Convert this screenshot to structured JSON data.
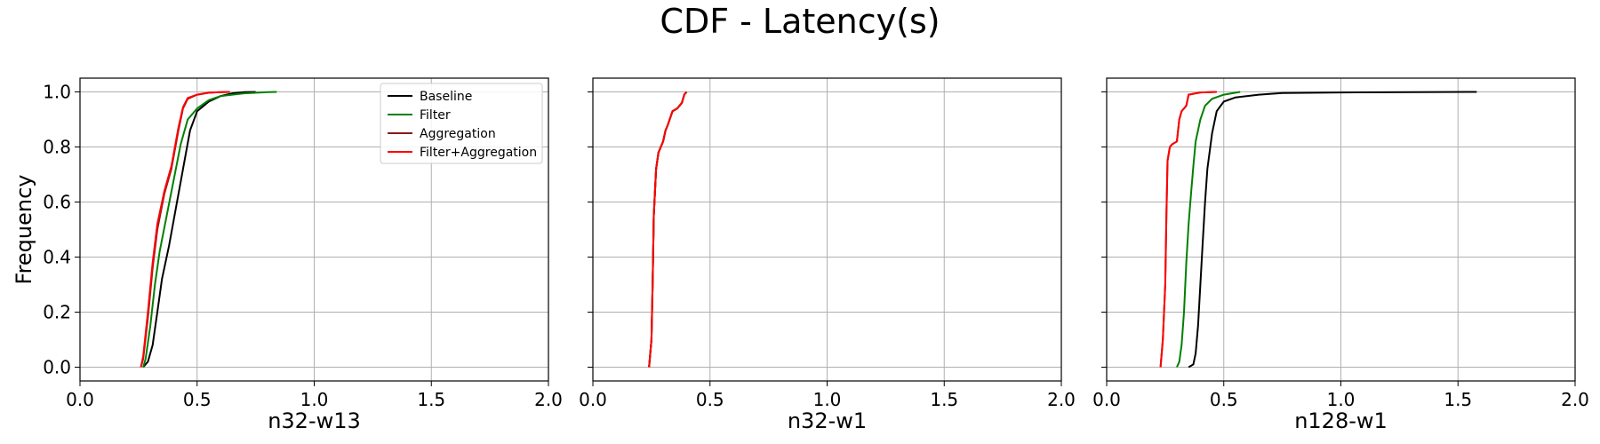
{
  "title": "CDF - Latency(s)",
  "chart_data": [
    {
      "type": "line",
      "xlabel": "n32-w13",
      "ylabel": "Frequency",
      "xlim": [
        0,
        2.0
      ],
      "ylim": [
        -0.05,
        1.05
      ],
      "xticks": [
        "0.0",
        "0.5",
        "1.0",
        "1.5",
        "2.0"
      ],
      "yticks": [
        "0.0",
        "0.2",
        "0.4",
        "0.6",
        "0.8",
        "1.0"
      ],
      "grid": true,
      "legend": "top-right",
      "series": [
        {
          "name": "Baseline",
          "color": "#000000",
          "x": [
            0.27,
            0.29,
            0.31,
            0.33,
            0.35,
            0.38,
            0.41,
            0.44,
            0.47,
            0.5,
            0.55,
            0.6,
            0.65,
            0.7,
            0.75
          ],
          "y": [
            0.0,
            0.02,
            0.08,
            0.2,
            0.32,
            0.44,
            0.58,
            0.72,
            0.86,
            0.93,
            0.965,
            0.985,
            0.995,
            0.999,
            1.0
          ]
        },
        {
          "name": "Filter",
          "color": "#008000",
          "x": [
            0.27,
            0.28,
            0.3,
            0.32,
            0.34,
            0.37,
            0.4,
            0.43,
            0.46,
            0.5,
            0.55,
            0.6,
            0.7,
            0.8,
            0.84
          ],
          "y": [
            0.0,
            0.03,
            0.15,
            0.3,
            0.42,
            0.55,
            0.68,
            0.81,
            0.9,
            0.94,
            0.97,
            0.985,
            0.995,
            0.999,
            1.0
          ]
        },
        {
          "name": "Aggregation",
          "color": "#8b1a1a",
          "x": [
            0.26,
            0.27,
            0.29,
            0.31,
            0.33,
            0.36,
            0.39,
            0.42,
            0.44,
            0.46,
            0.5,
            0.55,
            0.6,
            0.64
          ],
          "y": [
            0.0,
            0.03,
            0.18,
            0.36,
            0.5,
            0.63,
            0.72,
            0.86,
            0.94,
            0.975,
            0.99,
            0.997,
            0.999,
            1.0
          ]
        },
        {
          "name": "Filter+Aggregation",
          "color": "#ff0000",
          "x": [
            0.26,
            0.27,
            0.29,
            0.31,
            0.33,
            0.36,
            0.39,
            0.42,
            0.44,
            0.46,
            0.5,
            0.55,
            0.6,
            0.64
          ],
          "y": [
            0.0,
            0.04,
            0.2,
            0.38,
            0.52,
            0.64,
            0.73,
            0.87,
            0.945,
            0.978,
            0.99,
            0.997,
            0.999,
            1.0
          ]
        }
      ]
    },
    {
      "type": "line",
      "xlabel": "n32-w1",
      "ylabel": "",
      "xlim": [
        0,
        2.0
      ],
      "ylim": [
        -0.05,
        1.05
      ],
      "xticks": [
        "0.0",
        "0.5",
        "1.0",
        "1.5",
        "2.0"
      ],
      "yticks": [
        "",
        "",
        "",
        "",
        "",
        ""
      ],
      "grid": true,
      "legend": "none",
      "series": [
        {
          "name": "Baseline",
          "color": "#000000",
          "x": [
            0.24,
            0.25,
            0.255,
            0.26,
            0.27,
            0.28,
            0.29,
            0.3,
            0.31,
            0.32,
            0.34,
            0.36,
            0.38,
            0.39,
            0.4
          ],
          "y": [
            0.0,
            0.1,
            0.3,
            0.55,
            0.72,
            0.78,
            0.8,
            0.82,
            0.86,
            0.88,
            0.93,
            0.94,
            0.96,
            0.99,
            1.0
          ]
        },
        {
          "name": "Filter",
          "color": "#008000",
          "x": [
            0.24,
            0.25,
            0.255,
            0.26,
            0.27,
            0.28,
            0.29,
            0.3,
            0.31,
            0.32,
            0.34,
            0.36,
            0.38,
            0.39,
            0.4
          ],
          "y": [
            0.0,
            0.1,
            0.3,
            0.55,
            0.72,
            0.78,
            0.8,
            0.82,
            0.86,
            0.88,
            0.93,
            0.94,
            0.96,
            0.99,
            1.0
          ]
        },
        {
          "name": "Aggregation",
          "color": "#8b1a1a",
          "x": [
            0.24,
            0.25,
            0.255,
            0.26,
            0.27,
            0.28,
            0.29,
            0.3,
            0.31,
            0.32,
            0.34,
            0.36,
            0.38,
            0.39,
            0.4
          ],
          "y": [
            0.0,
            0.1,
            0.3,
            0.55,
            0.72,
            0.78,
            0.8,
            0.82,
            0.86,
            0.88,
            0.93,
            0.94,
            0.96,
            0.99,
            1.0
          ]
        },
        {
          "name": "Filter+Aggregation",
          "color": "#ff0000",
          "x": [
            0.24,
            0.25,
            0.255,
            0.26,
            0.27,
            0.28,
            0.29,
            0.3,
            0.31,
            0.32,
            0.34,
            0.36,
            0.38,
            0.39,
            0.4
          ],
          "y": [
            0.0,
            0.1,
            0.3,
            0.55,
            0.72,
            0.78,
            0.8,
            0.82,
            0.86,
            0.88,
            0.93,
            0.94,
            0.96,
            0.99,
            1.0
          ]
        }
      ]
    },
    {
      "type": "line",
      "xlabel": "n128-w1",
      "ylabel": "",
      "xlim": [
        0,
        2.0
      ],
      "ylim": [
        -0.05,
        1.05
      ],
      "xticks": [
        "0.0",
        "0.5",
        "1.0",
        "1.5",
        "2.0"
      ],
      "yticks": [
        "",
        "",
        "",
        "",
        "",
        ""
      ],
      "grid": true,
      "legend": "none",
      "series": [
        {
          "name": "Baseline",
          "color": "#000000",
          "x": [
            0.35,
            0.37,
            0.38,
            0.39,
            0.4,
            0.41,
            0.42,
            0.43,
            0.45,
            0.47,
            0.5,
            0.55,
            0.65,
            0.75,
            1.0,
            1.3,
            1.58
          ],
          "y": [
            0.0,
            0.01,
            0.05,
            0.15,
            0.3,
            0.45,
            0.6,
            0.72,
            0.85,
            0.93,
            0.965,
            0.98,
            0.99,
            0.996,
            0.998,
            0.999,
            1.0
          ]
        },
        {
          "name": "Filter",
          "color": "#008000",
          "x": [
            0.3,
            0.31,
            0.32,
            0.33,
            0.34,
            0.35,
            0.36,
            0.37,
            0.38,
            0.4,
            0.42,
            0.45,
            0.5,
            0.57
          ],
          "y": [
            0.0,
            0.02,
            0.08,
            0.2,
            0.38,
            0.52,
            0.63,
            0.73,
            0.82,
            0.9,
            0.95,
            0.975,
            0.99,
            1.0
          ]
        },
        {
          "name": "Aggregation",
          "color": "#8b1a1a",
          "x": [
            0.23,
            0.24,
            0.25,
            0.255,
            0.26,
            0.27,
            0.28,
            0.3,
            0.31,
            0.32,
            0.33,
            0.34,
            0.35,
            0.4,
            0.47
          ],
          "y": [
            0.0,
            0.1,
            0.3,
            0.55,
            0.75,
            0.8,
            0.81,
            0.82,
            0.9,
            0.93,
            0.94,
            0.95,
            0.99,
            0.998,
            1.0
          ]
        },
        {
          "name": "Filter+Aggregation",
          "color": "#ff0000",
          "x": [
            0.23,
            0.24,
            0.25,
            0.255,
            0.26,
            0.27,
            0.28,
            0.3,
            0.31,
            0.32,
            0.33,
            0.34,
            0.35,
            0.4,
            0.47
          ],
          "y": [
            0.0,
            0.1,
            0.3,
            0.55,
            0.75,
            0.8,
            0.81,
            0.82,
            0.9,
            0.93,
            0.94,
            0.95,
            0.99,
            0.998,
            1.0
          ]
        }
      ]
    }
  ]
}
